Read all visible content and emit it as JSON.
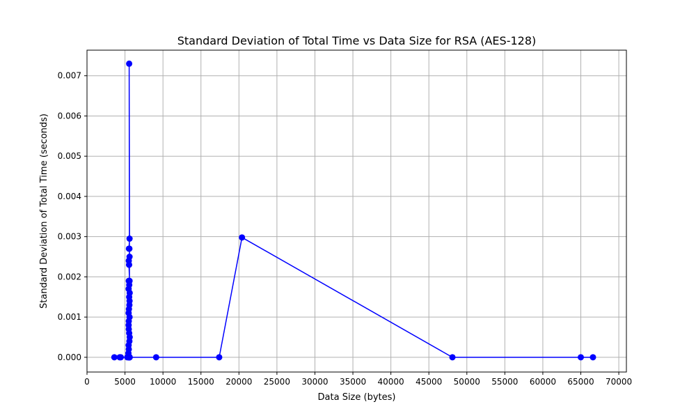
{
  "chart_data": {
    "type": "line",
    "title": "Standard Deviation of Total Time vs Data Size for RSA (AES-128)",
    "xlabel": "Data Size (bytes)",
    "ylabel": "Standard Deviation of Total Time (seconds)",
    "xlim": [
      0,
      71000
    ],
    "ylim": [
      -0.000366,
      0.007636
    ],
    "xticks": [
      0,
      5000,
      10000,
      15000,
      20000,
      25000,
      30000,
      35000,
      40000,
      45000,
      50000,
      55000,
      60000,
      65000,
      70000
    ],
    "yticks": [
      0.0,
      0.001,
      0.002,
      0.003,
      0.004,
      0.005,
      0.006,
      0.007
    ],
    "xtick_labels": [
      "0",
      "5000",
      "10000",
      "15000",
      "20000",
      "25000",
      "30000",
      "35000",
      "40000",
      "45000",
      "50000",
      "55000",
      "60000",
      "65000",
      "70000"
    ],
    "ytick_labels": [
      "0.000",
      "0.001",
      "0.002",
      "0.003",
      "0.004",
      "0.005",
      "0.006",
      "0.007"
    ],
    "grid": true,
    "legend": "none",
    "colors": {
      "series": "#0000ff",
      "grid": "#b0b0b0"
    },
    "series": [
      {
        "x": [
          3600,
          4300,
          4450,
          5300,
          5500,
          5450,
          5550,
          5500,
          5600,
          5480,
          5520,
          5580,
          5500,
          5620,
          5480,
          5550,
          5600,
          5500,
          5560,
          5480,
          5620,
          5500,
          5540,
          5600,
          5480,
          5520,
          5580,
          5600,
          5550,
          5500,
          5620,
          5480,
          5560,
          5600,
          5500,
          5540,
          5600,
          5580,
          5520,
          5600,
          5550,
          5600,
          5580,
          5600,
          9100,
          17400,
          20400,
          48100,
          65000,
          66600
        ],
        "y": [
          0.0,
          0.0,
          0.0,
          0.0,
          0.0,
          0.0001,
          0.0,
          0.0002,
          0.0,
          0.0003,
          0.0,
          0.0004,
          0.0,
          0.0005,
          0.0,
          0.0006,
          0.0,
          0.0007,
          0.0,
          0.0008,
          0.0,
          0.0009,
          0.0,
          0.001,
          0.0011,
          0.0012,
          0.0013,
          0.0014,
          0.0015,
          0.0019,
          0.0016,
          0.0017,
          0.0018,
          0.0019,
          0.0024,
          0.0023,
          0.0025,
          0.0027,
          0.0027,
          0.00295,
          0.0073,
          0.0,
          0.0,
          0.0,
          0.0,
          0.0,
          0.00298,
          0.0,
          0.0,
          0.0
        ]
      }
    ]
  }
}
